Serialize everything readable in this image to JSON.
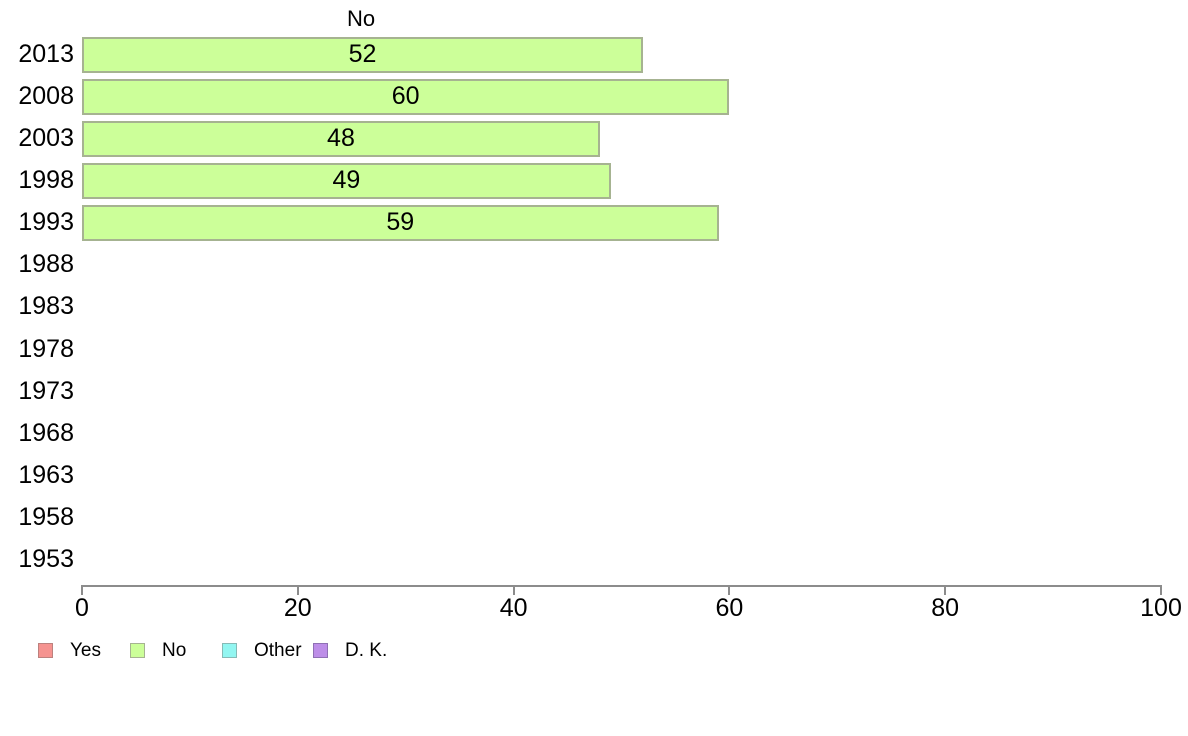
{
  "chart_data": {
    "type": "bar",
    "orientation": "horizontal",
    "title": "No",
    "categories": [
      "2013",
      "2008",
      "2003",
      "1998",
      "1993",
      "1988",
      "1983",
      "1978",
      "1973",
      "1968",
      "1963",
      "1958",
      "1953"
    ],
    "values": [
      52,
      60,
      48,
      49,
      59,
      null,
      null,
      null,
      null,
      null,
      null,
      null,
      null
    ],
    "value_labels": [
      "52",
      "60",
      "48",
      "49",
      "59",
      "",
      "",
      "",
      "",
      "",
      "",
      "",
      ""
    ],
    "xlim": [
      0,
      100
    ],
    "x_ticks": [
      "0",
      "20",
      "40",
      "60",
      "80",
      "100"
    ],
    "x_tick_values": [
      0,
      20,
      40,
      60,
      80,
      100
    ],
    "grid": false,
    "legend_position": "bottom-left",
    "bar_fill": "#ccff99",
    "bar_border": "#a6b391",
    "axis_color": "#8c8c8c",
    "text_color": "#000000",
    "legend": [
      {
        "label": "Yes",
        "fill": "#f59390",
        "border": "#bc817e"
      },
      {
        "label": "No",
        "fill": "#ccff99",
        "border": "#a6b391"
      },
      {
        "label": "Other",
        "fill": "#92f6f1",
        "border": "#86bab6"
      },
      {
        "label": "D. K.",
        "fill": "#bd8ee8",
        "border": "#8f70b4"
      }
    ]
  }
}
